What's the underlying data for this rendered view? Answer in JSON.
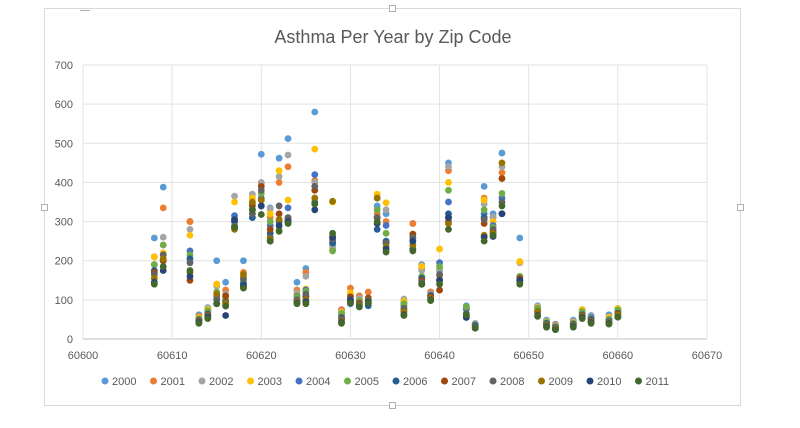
{
  "chart_data": {
    "type": "scatter",
    "title": "Asthma Per Year by Zip Code",
    "xlabel": "",
    "ylabel": "",
    "xlim": [
      60600,
      60670
    ],
    "ylim": [
      0,
      700
    ],
    "xticks": [
      60600,
      60610,
      60620,
      60630,
      60640,
      60650,
      60660,
      60670
    ],
    "yticks": [
      0,
      100,
      200,
      300,
      400,
      500,
      600,
      700
    ],
    "grid": true,
    "legend_position": "bottom",
    "zips": [
      60608,
      60609,
      60612,
      60613,
      60614,
      60615,
      60616,
      60617,
      60618,
      60619,
      60620,
      60621,
      60622,
      60623,
      60624,
      60625,
      60626,
      60628,
      60629,
      60630,
      60631,
      60632,
      60633,
      60634,
      60636,
      60637,
      60638,
      60639,
      60640,
      60641,
      60643,
      60644,
      60645,
      60646,
      60647,
      60649,
      60651,
      60652,
      60653,
      60655,
      60656,
      60657,
      60659,
      60660
    ],
    "series": [
      {
        "name": "2000",
        "color": "#5B9BD5",
        "values": [
          258,
          388,
          300,
          62,
          80,
          200,
          145,
          300,
          200,
          360,
          472,
          335,
          462,
          512,
          145,
          180,
          580,
          240,
          75,
          100,
          110,
          95,
          340,
          320,
          95,
          295,
          190,
          120,
          175,
          450,
          85,
          40,
          390,
          320,
          475,
          258,
          85,
          48,
          38,
          48,
          75,
          60,
          62,
          78
        ]
      },
      {
        "name": "2001",
        "color": "#ED7D31",
        "values": [
          210,
          335,
          300,
          58,
          75,
          140,
          125,
          285,
          170,
          350,
          398,
          310,
          400,
          440,
          125,
          170,
          405,
          230,
          75,
          130,
          110,
          120,
          320,
          300,
          92,
          295,
          180,
          120,
          160,
          430,
          80,
          38,
          360,
          310,
          425,
          195,
          80,
          42,
          36,
          42,
          68,
          55,
          52,
          72
        ]
      },
      {
        "name": "2002",
        "color": "#A5A5A5",
        "values": [
          210,
          260,
          280,
          55,
          78,
          135,
          115,
          365,
          150,
          370,
          400,
          332,
          415,
          470,
          118,
          160,
          400,
          235,
          70,
          112,
          104,
          100,
          360,
          330,
          102,
          255,
          175,
          115,
          178,
          440,
          82,
          40,
          345,
          312,
          440,
          195,
          83,
          44,
          34,
          45,
          65,
          58,
          54,
          76
        ]
      },
      {
        "name": "2003",
        "color": "#FFC000",
        "values": [
          210,
          220,
          265,
          55,
          76,
          140,
          105,
          350,
          160,
          360,
          355,
          320,
          430,
          355,
          112,
          128,
          485,
          350,
          68,
          118,
          97,
          98,
          370,
          348,
          96,
          268,
          186,
          108,
          230,
          400,
          78,
          36,
          355,
          300,
          410,
          198,
          80,
          44,
          32,
          42,
          75,
          55,
          56,
          78
        ]
      },
      {
        "name": "2004",
        "color": "#4472C4",
        "values": [
          190,
          215,
          225,
          50,
          70,
          110,
          95,
          315,
          145,
          320,
          360,
          290,
          305,
          335,
          110,
          125,
          420,
          250,
          60,
          90,
          95,
          90,
          310,
          290,
          85,
          230,
          158,
          112,
          195,
          350,
          76,
          35,
          320,
          290,
          360,
          160,
          78,
          40,
          30,
          40,
          64,
          55,
          50,
          70
        ]
      },
      {
        "name": "2005",
        "color": "#70AD47",
        "values": [
          190,
          240,
          215,
          52,
          72,
          120,
          98,
          305,
          150,
          345,
          372,
          300,
          280,
          310,
          108,
          122,
          390,
          225,
          65,
          98,
          98,
          92,
          330,
          270,
          90,
          240,
          160,
          110,
          185,
          380,
          82,
          36,
          330,
          285,
          372,
          160,
          78,
          42,
          32,
          40,
          70,
          52,
          48,
          74
        ]
      },
      {
        "name": "2006",
        "color": "#255E91",
        "values": [
          175,
          200,
          205,
          48,
          64,
          100,
          95,
          300,
          140,
          310,
          340,
          270,
          300,
          305,
          100,
          110,
          350,
          245,
          55,
          95,
          90,
          85,
          280,
          250,
          70,
          230,
          155,
          110,
          150,
          320,
          60,
          35,
          310,
          275,
          320,
          150,
          70,
          40,
          30,
          38,
          62,
          50,
          45,
          66
        ]
      },
      {
        "name": "2007",
        "color": "#9E480E",
        "values": [
          170,
          200,
          150,
          47,
          62,
          90,
          110,
          285,
          135,
          340,
          390,
          280,
          320,
          300,
          95,
          108,
          380,
          262,
          52,
          108,
          92,
          105,
          310,
          245,
          78,
          268,
          150,
          108,
          125,
          300,
          58,
          30,
          295,
          272,
          410,
          155,
          68,
          35,
          28,
          36,
          60,
          46,
          42,
          64
        ]
      },
      {
        "name": "2008",
        "color": "#636363",
        "values": [
          165,
          215,
          195,
          45,
          60,
          102,
          88,
          290,
          155,
          320,
          380,
          260,
          340,
          310,
          100,
          115,
          390,
          255,
          50,
          100,
          88,
          100,
          310,
          245,
          78,
          260,
          145,
          102,
          165,
          310,
          65,
          32,
          305,
          280,
          350,
          150,
          70,
          38,
          28,
          36,
          58,
          44,
          40,
          60
        ]
      },
      {
        "name": "2009",
        "color": "#997300",
        "values": [
          155,
          205,
          170,
          42,
          58,
          115,
          92,
          280,
          165,
          350,
          355,
          255,
          305,
          300,
          95,
          100,
          360,
          352,
          45,
          95,
          85,
          98,
          360,
          235,
          70,
          240,
          140,
          104,
          150,
          295,
          60,
          28,
          265,
          270,
          450,
          145,
          70,
          35,
          26,
          34,
          58,
          44,
          42,
          62
        ]
      },
      {
        "name": "2010",
        "color": "#264478",
        "values": [
          145,
          175,
          160,
          42,
          56,
          90,
          60,
          305,
          135,
          330,
          340,
          250,
          290,
          300,
          92,
          95,
          330,
          260,
          42,
          100,
          82,
          95,
          295,
          230,
          62,
          250,
          140,
          100,
          150,
          310,
          55,
          28,
          260,
          262,
          320,
          150,
          60,
          32,
          24,
          32,
          55,
          42,
          40,
          56
        ]
      },
      {
        "name": "2011",
        "color": "#43682B",
        "values": [
          140,
          185,
          175,
          40,
          52,
          90,
          84,
          285,
          130,
          330,
          318,
          250,
          275,
          295,
          90,
          90,
          345,
          270,
          40,
          92,
          82,
          92,
          300,
          222,
          60,
          225,
          140,
          98,
          140,
          280,
          62,
          28,
          250,
          265,
          340,
          140,
          58,
          30,
          24,
          30,
          52,
          40,
          38,
          56
        ]
      }
    ]
  }
}
